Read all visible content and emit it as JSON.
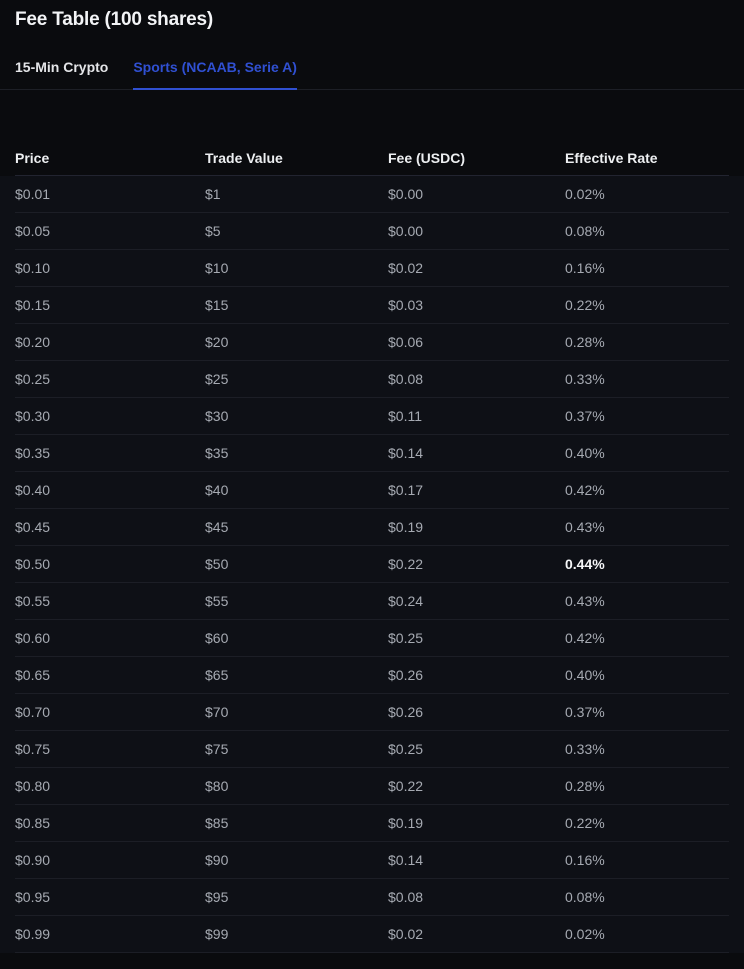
{
  "header": {
    "title": "Fee Table (100 shares)"
  },
  "tabs": [
    {
      "label": "15-Min Crypto",
      "active": false
    },
    {
      "label": "Sports (NCAAB, Serie A)",
      "active": true
    }
  ],
  "table": {
    "columns": [
      "Price",
      "Trade Value",
      "Fee (USDC)",
      "Effective Rate"
    ],
    "rows": [
      {
        "price": "$0.01",
        "trade_value": "$1",
        "fee": "$0.00",
        "effective_rate": "0.02%",
        "highlight": false
      },
      {
        "price": "$0.05",
        "trade_value": "$5",
        "fee": "$0.00",
        "effective_rate": "0.08%",
        "highlight": false
      },
      {
        "price": "$0.10",
        "trade_value": "$10",
        "fee": "$0.02",
        "effective_rate": "0.16%",
        "highlight": false
      },
      {
        "price": "$0.15",
        "trade_value": "$15",
        "fee": "$0.03",
        "effective_rate": "0.22%",
        "highlight": false
      },
      {
        "price": "$0.20",
        "trade_value": "$20",
        "fee": "$0.06",
        "effective_rate": "0.28%",
        "highlight": false
      },
      {
        "price": "$0.25",
        "trade_value": "$25",
        "fee": "$0.08",
        "effective_rate": "0.33%",
        "highlight": false
      },
      {
        "price": "$0.30",
        "trade_value": "$30",
        "fee": "$0.11",
        "effective_rate": "0.37%",
        "highlight": false
      },
      {
        "price": "$0.35",
        "trade_value": "$35",
        "fee": "$0.14",
        "effective_rate": "0.40%",
        "highlight": false
      },
      {
        "price": "$0.40",
        "trade_value": "$40",
        "fee": "$0.17",
        "effective_rate": "0.42%",
        "highlight": false
      },
      {
        "price": "$0.45",
        "trade_value": "$45",
        "fee": "$0.19",
        "effective_rate": "0.43%",
        "highlight": false
      },
      {
        "price": "$0.50",
        "trade_value": "$50",
        "fee": "$0.22",
        "effective_rate": "0.44%",
        "highlight": true
      },
      {
        "price": "$0.55",
        "trade_value": "$55",
        "fee": "$0.24",
        "effective_rate": "0.43%",
        "highlight": false
      },
      {
        "price": "$0.60",
        "trade_value": "$60",
        "fee": "$0.25",
        "effective_rate": "0.42%",
        "highlight": false
      },
      {
        "price": "$0.65",
        "trade_value": "$65",
        "fee": "$0.26",
        "effective_rate": "0.40%",
        "highlight": false
      },
      {
        "price": "$0.70",
        "trade_value": "$70",
        "fee": "$0.26",
        "effective_rate": "0.37%",
        "highlight": false
      },
      {
        "price": "$0.75",
        "trade_value": "$75",
        "fee": "$0.25",
        "effective_rate": "0.33%",
        "highlight": false
      },
      {
        "price": "$0.80",
        "trade_value": "$80",
        "fee": "$0.22",
        "effective_rate": "0.28%",
        "highlight": false
      },
      {
        "price": "$0.85",
        "trade_value": "$85",
        "fee": "$0.19",
        "effective_rate": "0.22%",
        "highlight": false
      },
      {
        "price": "$0.90",
        "trade_value": "$90",
        "fee": "$0.14",
        "effective_rate": "0.16%",
        "highlight": false
      },
      {
        "price": "$0.95",
        "trade_value": "$95",
        "fee": "$0.08",
        "effective_rate": "0.08%",
        "highlight": false
      },
      {
        "price": "$0.99",
        "trade_value": "$99",
        "fee": "$0.02",
        "effective_rate": "0.02%",
        "highlight": false
      }
    ]
  },
  "colors": {
    "accent_blue": "#3050d2",
    "page_bg": "#0a0b0e",
    "row_bg": "#0e1016",
    "divider": "#1c1e26",
    "header_text": "#edeff1",
    "cell_text": "#a6aab2",
    "highlight_text": "#f5f6f8"
  }
}
